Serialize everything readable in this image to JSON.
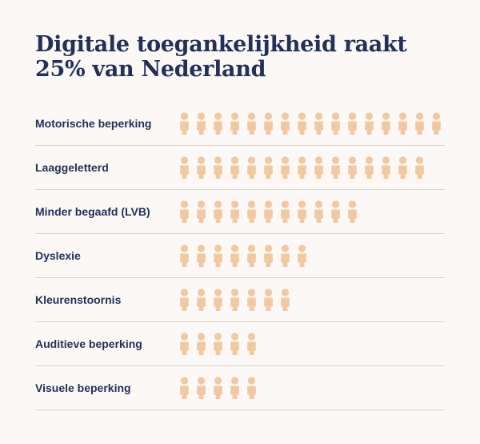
{
  "page": {
    "title_line1": "Digitale toegankelijkheid raakt",
    "title_line2": "25% van Nederland"
  },
  "colors": {
    "background": "#fbf8f6",
    "text": "#23305a",
    "icon": "#f2c8a0",
    "divider": "#d9d4d0"
  },
  "icon_name": "person-icon",
  "chart_data": {
    "type": "pictogram",
    "categories": [
      "Motorische beperking",
      "Laaggeletterd",
      "Minder begaafd (LVB)",
      "Dyslexie",
      "Kleurenstoornis",
      "Auditieve beperking",
      "Visuele beperking"
    ],
    "values": [
      16,
      15,
      11,
      8,
      7,
      5,
      5
    ],
    "title": "Digitale toegankelijkheid raakt 25% van Nederland"
  }
}
